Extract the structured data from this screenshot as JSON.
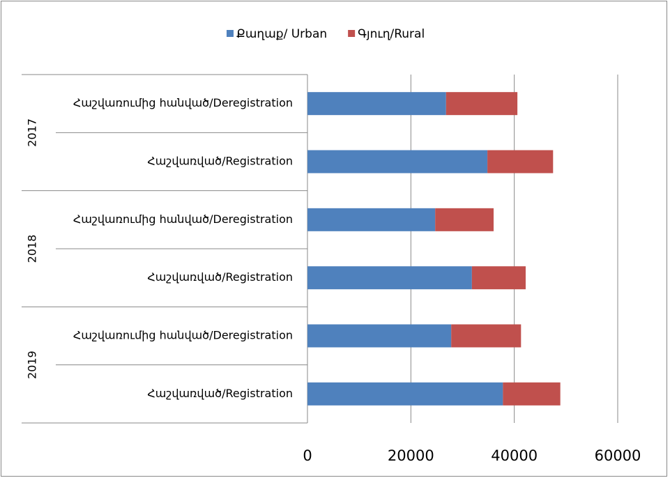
{
  "chart_data": {
    "type": "stacked-bar-horizontal",
    "groups": [
      "2017",
      "2018",
      "2019"
    ],
    "categories": [
      "Հաշվառումից հանված/Deregistration",
      "Հաշվառված/Registration",
      "Հաշվառումից հանված/Deregistration",
      "Հաշվառված/Registration",
      "Հաշվառումից հանված/Deregistration",
      "Հաշվառված/Registration"
    ],
    "series": [
      {
        "name": "Քաղաք/ Urban",
        "color": "#4f81bd",
        "values": [
          26800,
          34800,
          24700,
          31800,
          27800,
          37800
        ]
      },
      {
        "name": "Գյուղ/Rural",
        "color": "#c0504d",
        "values": [
          13800,
          12700,
          11300,
          10400,
          13500,
          11100
        ]
      }
    ],
    "xlim": [
      0,
      60000
    ],
    "xticks": [
      0,
      20000,
      40000,
      60000
    ],
    "grid": true,
    "legend": "top"
  }
}
